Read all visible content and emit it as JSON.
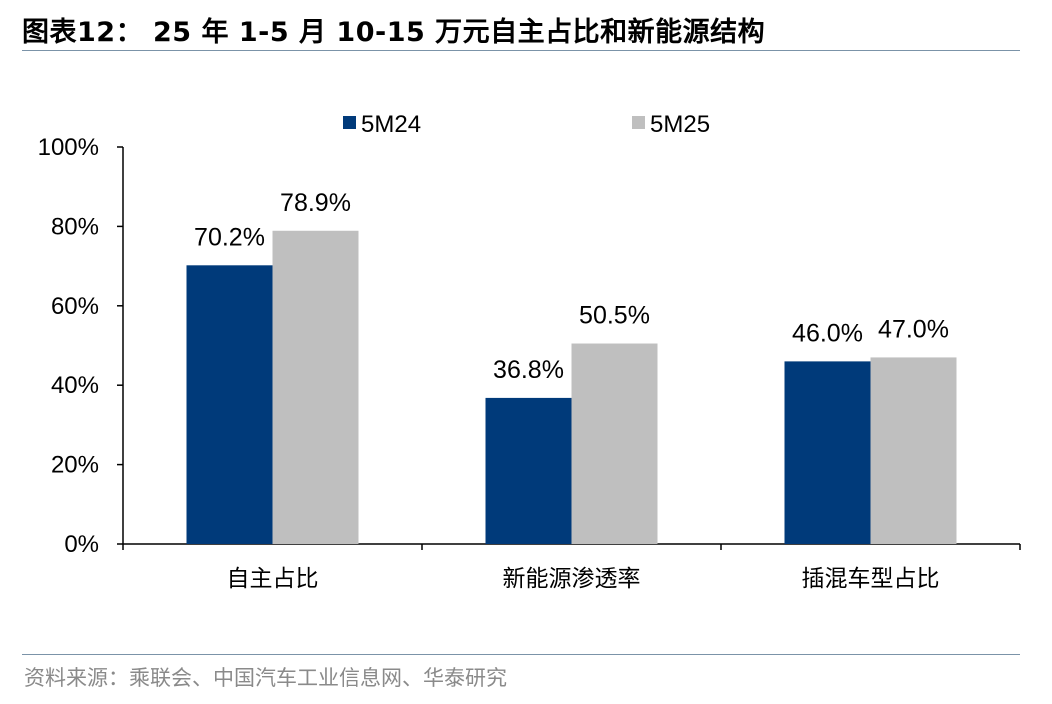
{
  "header": {
    "title": "图表12： 25 年 1-5 月 10-15 万元自主占比和新能源结构"
  },
  "footer": {
    "source": "资料来源：乘联会、中国汽车工业信息网、华泰研究"
  },
  "colors": {
    "series_5M24": "#003a7a",
    "series_5M25": "#bfbfbf",
    "rule": "#7b93a8"
  },
  "chart_data": {
    "type": "bar",
    "categories": [
      "自主占比",
      "新能源渗透率",
      "插混车型占比"
    ],
    "series": [
      {
        "name": "5M24",
        "values": [
          70.2,
          36.8,
          46.0
        ],
        "labels": [
          "70.2%",
          "36.8%",
          "46.0%"
        ]
      },
      {
        "name": "5M25",
        "values": [
          78.9,
          50.5,
          47.0
        ],
        "labels": [
          "78.9%",
          "50.5%",
          "47.0%"
        ]
      }
    ],
    "ylim": [
      0,
      100
    ],
    "yticks": [
      "0%",
      "20%",
      "40%",
      "60%",
      "80%",
      "100%"
    ],
    "xlabel": "",
    "ylabel": "",
    "grid": false,
    "legend_position": "top"
  }
}
